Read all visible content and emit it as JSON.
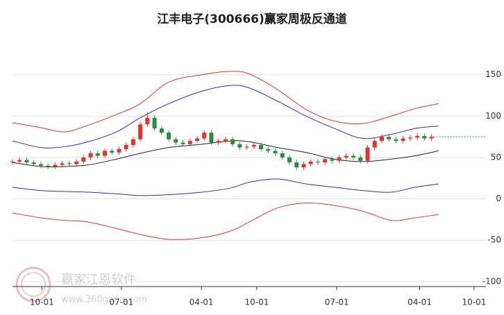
{
  "chart_data": {
    "type": "candlestick",
    "title": "江丰电子(300666)赢家周极反通道",
    "watermark": {
      "name": "赢家江恩软件",
      "url": "www.360gann.com"
    },
    "xlim": [
      0,
      100
    ],
    "xticks": [
      {
        "value": 6.2,
        "label": "10-01"
      },
      {
        "value": 23,
        "label": "07-01"
      },
      {
        "value": 39.9,
        "label": "04-01"
      },
      {
        "value": 51.6,
        "label": "10-01"
      },
      {
        "value": 68.5,
        "label": "07-01"
      },
      {
        "value": 86,
        "label": "04-01"
      },
      {
        "value": 97.5,
        "label": "10-01"
      }
    ],
    "ylim": [
      -106,
      195
    ],
    "yticks": [
      150,
      100,
      50,
      0,
      -50,
      -100
    ],
    "grid": true,
    "up_color": "#e8312a",
    "down_color": "#2b8a3e",
    "last_line_color": "#2b8a3e",
    "candles": {
      "x": [
        0,
        1.5,
        3,
        4.5,
        6,
        7.5,
        9,
        10.5,
        12,
        13.5,
        15,
        16.5,
        18,
        19.5,
        21,
        22.5,
        24,
        25.5,
        27,
        28.5,
        30,
        31.5,
        33,
        34.5,
        36,
        37.5,
        39,
        40.5,
        42,
        43.5,
        45,
        46.5,
        48,
        49.5,
        51,
        52.5,
        54,
        55.5,
        57,
        58.5,
        60,
        61.5,
        63,
        64.5,
        66,
        67.5,
        69,
        70.5,
        72,
        73.5,
        75,
        76.5,
        78,
        79.5,
        81,
        82.5,
        84,
        85.5,
        87,
        88.5
      ],
      "open": [
        44,
        45,
        47,
        44,
        42,
        40,
        39,
        41,
        43,
        42,
        45,
        50,
        55,
        52,
        58,
        56,
        60,
        65,
        72,
        90,
        98,
        85,
        80,
        72,
        68,
        66,
        70,
        73,
        80,
        68,
        70,
        72,
        66,
        62,
        63,
        65,
        60,
        58,
        55,
        50,
        44,
        38,
        42,
        45,
        44,
        48,
        46,
        50,
        52,
        50,
        46,
        62,
        70,
        75,
        72,
        70,
        73,
        74,
        76,
        73
      ],
      "high": [
        48,
        50,
        50,
        47,
        45,
        43,
        44,
        46,
        46,
        48,
        53,
        58,
        58,
        61,
        61,
        63,
        68,
        75,
        93,
        105,
        101,
        88,
        83,
        75,
        71,
        73,
        76,
        83,
        83,
        73,
        75,
        75,
        69,
        66,
        68,
        68,
        63,
        61,
        58,
        53,
        47,
        45,
        48,
        48,
        51,
        51,
        53,
        55,
        55,
        53,
        65,
        73,
        78,
        78,
        75,
        76,
        77,
        79,
        79,
        78
      ],
      "low": [
        41,
        42,
        41,
        39,
        37,
        36,
        36,
        38,
        39,
        39,
        42,
        47,
        49,
        49,
        53,
        53,
        57,
        62,
        69,
        87,
        82,
        77,
        69,
        65,
        63,
        63,
        67,
        70,
        65,
        65,
        67,
        63,
        59,
        59,
        60,
        57,
        55,
        52,
        47,
        41,
        35,
        35,
        39,
        41,
        41,
        43,
        43,
        47,
        47,
        43,
        43,
        59,
        67,
        69,
        67,
        67,
        70,
        71,
        70,
        70
      ],
      "close": [
        45,
        47,
        44,
        42,
        40,
        39,
        41,
        43,
        42,
        45,
        50,
        55,
        52,
        58,
        56,
        60,
        65,
        72,
        90,
        98,
        85,
        80,
        72,
        68,
        66,
        70,
        73,
        80,
        68,
        70,
        72,
        66,
        62,
        63,
        65,
        60,
        58,
        55,
        50,
        44,
        38,
        42,
        45,
        44,
        48,
        46,
        50,
        52,
        50,
        46,
        62,
        70,
        75,
        72,
        70,
        73,
        74,
        76,
        73,
        75
      ]
    },
    "channel_x": [
      0,
      6,
      11,
      16,
      22,
      27,
      33,
      40,
      46,
      50,
      56,
      62,
      68,
      74,
      80,
      85,
      90
    ],
    "series": [
      {
        "color": "#e8312a",
        "values": [
          92,
          86,
          81,
          89,
          102,
          115,
          141,
          150,
          154,
          151,
          132,
          108,
          94,
          91,
          100,
          109,
          115
        ]
      },
      {
        "color": "#2a2ad0",
        "values": [
          70,
          62,
          63,
          69,
          81,
          98,
          115,
          130,
          137,
          134,
          118,
          100,
          85,
          73,
          78,
          85,
          88
        ]
      },
      {
        "color": "#222222",
        "values": [
          44,
          39,
          39,
          41,
          48,
          55,
          62,
          66,
          70,
          69,
          62,
          56,
          48,
          45,
          48,
          52,
          58
        ]
      },
      {
        "color": "#2a2ad0",
        "values": [
          14,
          10,
          9,
          8,
          6,
          4,
          5,
          8,
          13,
          20,
          24,
          18,
          14,
          10,
          8,
          14,
          18
        ]
      },
      {
        "color": "#e8312a",
        "values": [
          -17,
          -23,
          -26,
          -28,
          -36,
          -43,
          -49,
          -47,
          -39,
          -28,
          -11,
          -5,
          -8,
          -15,
          -26,
          -23,
          -19
        ]
      }
    ]
  }
}
